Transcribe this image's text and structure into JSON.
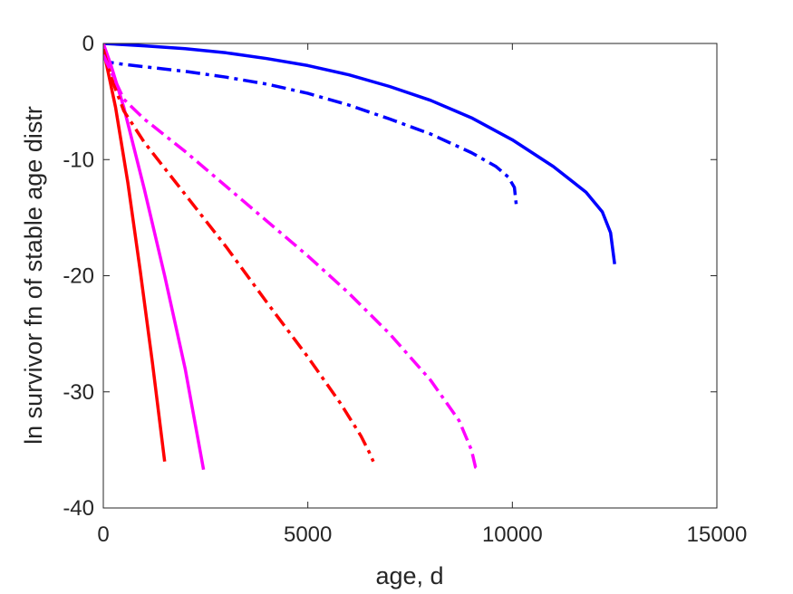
{
  "chart_data": {
    "type": "line",
    "title": "",
    "xlabel": "age, d",
    "ylabel": "ln survivor fn of stable age distr",
    "xlim": [
      0,
      15000
    ],
    "ylim": [
      -40,
      0
    ],
    "xticks": [
      0,
      5000,
      10000,
      15000
    ],
    "yticks": [
      -40,
      -30,
      -20,
      -10,
      0
    ],
    "xtick_labels": [
      "0",
      "5000",
      "10000",
      "15000"
    ],
    "ytick_labels": [
      "-40",
      "-30",
      "-20",
      "-10",
      "0"
    ],
    "grid": false,
    "legend": "none",
    "series": [
      {
        "color": "#0000ff",
        "style": "solid",
        "points": [
          [
            0,
            0
          ],
          [
            1000,
            -0.2
          ],
          [
            2000,
            -0.45
          ],
          [
            3000,
            -0.8
          ],
          [
            4000,
            -1.3
          ],
          [
            5000,
            -1.9
          ],
          [
            6000,
            -2.7
          ],
          [
            7000,
            -3.7
          ],
          [
            8000,
            -4.9
          ],
          [
            9000,
            -6.4
          ],
          [
            10000,
            -8.3
          ],
          [
            11000,
            -10.6
          ],
          [
            11800,
            -12.8
          ],
          [
            12200,
            -14.5
          ],
          [
            12400,
            -16.3
          ],
          [
            12500,
            -19
          ]
        ]
      },
      {
        "color": "#0000ff",
        "style": "dashdot",
        "points": [
          [
            0,
            -1
          ],
          [
            100,
            -1.6
          ],
          [
            500,
            -1.8
          ],
          [
            1000,
            -2.0
          ],
          [
            2000,
            -2.4
          ],
          [
            3000,
            -2.9
          ],
          [
            4000,
            -3.5
          ],
          [
            5000,
            -4.3
          ],
          [
            6000,
            -5.3
          ],
          [
            7000,
            -6.5
          ],
          [
            8000,
            -7.8
          ],
          [
            9000,
            -9.4
          ],
          [
            9600,
            -10.6
          ],
          [
            9900,
            -11.5
          ],
          [
            10050,
            -12.4
          ],
          [
            10100,
            -14
          ]
        ]
      },
      {
        "color": "#ff0000",
        "style": "solid",
        "points": [
          [
            0,
            -0.5
          ],
          [
            300,
            -5.5
          ],
          [
            600,
            -12
          ],
          [
            900,
            -19.5
          ],
          [
            1200,
            -27.5
          ],
          [
            1500,
            -36
          ]
        ]
      },
      {
        "color": "#ff00ff",
        "style": "solid",
        "points": [
          [
            0,
            0
          ],
          [
            200,
            -2
          ],
          [
            500,
            -5.5
          ],
          [
            1000,
            -12.5
          ],
          [
            1500,
            -20
          ],
          [
            2000,
            -28
          ],
          [
            2450,
            -36.7
          ]
        ]
      },
      {
        "color": "#ff0000",
        "style": "dashdot",
        "points": [
          [
            0,
            -0.5
          ],
          [
            200,
            -3
          ],
          [
            500,
            -5.8
          ],
          [
            1000,
            -8.5
          ],
          [
            2000,
            -13
          ],
          [
            3000,
            -17.5
          ],
          [
            4000,
            -22.3
          ],
          [
            5000,
            -27
          ],
          [
            5800,
            -31
          ],
          [
            6300,
            -33.8
          ],
          [
            6500,
            -35.2
          ],
          [
            6600,
            -36
          ]
        ]
      },
      {
        "color": "#ff00ff",
        "style": "dashdot",
        "points": [
          [
            0,
            -1
          ],
          [
            200,
            -2.5
          ],
          [
            500,
            -4.8
          ],
          [
            1000,
            -6.5
          ],
          [
            2000,
            -9.3
          ],
          [
            3000,
            -12.3
          ],
          [
            4000,
            -15.3
          ],
          [
            5000,
            -18.3
          ],
          [
            6000,
            -21.5
          ],
          [
            7000,
            -25
          ],
          [
            8000,
            -29
          ],
          [
            8700,
            -32.5
          ],
          [
            9000,
            -35
          ],
          [
            9100,
            -36.5
          ],
          [
            9200,
            -36.8
          ]
        ]
      }
    ]
  }
}
